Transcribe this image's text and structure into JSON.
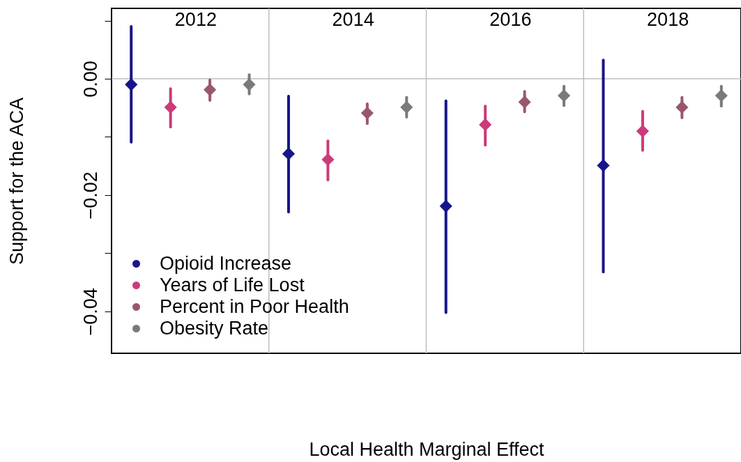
{
  "chart_data": {
    "type": "scatter",
    "xlabel": "Local Health Marginal Effect",
    "ylabel": "Support for the ACA",
    "categories": [
      null,
      null,
      null,
      null,
      null,
      null,
      null,
      null,
      null,
      null,
      null,
      null,
      null,
      null,
      null,
      null
    ],
    "annotations": [
      "2012",
      "2014",
      "2016",
      "2018"
    ],
    "ylim": [
      -0.0472,
      0.0121
    ],
    "yticks": [
      {
        "value": -0.04,
        "label": "−0.04"
      },
      {
        "value": -0.03,
        "label": null
      },
      {
        "value": -0.02,
        "label": "−0.02"
      },
      {
        "value": -0.01,
        "label": null
      },
      {
        "value": 0,
        "label": "0.00"
      },
      {
        "value": 0.01,
        "label": null
      }
    ],
    "marker": "diamond",
    "legend": "bottom left",
    "ref_lines": [
      {
        "axis": "y",
        "value": 0,
        "color": "#bebebe"
      }
    ],
    "series": [
      {
        "name": "Opioid Increase",
        "color": "#16168a",
        "values": [
          -0.001,
          null,
          null,
          null,
          -0.0129,
          null,
          null,
          null,
          -0.0219,
          null,
          null,
          null,
          -0.0149,
          null,
          null,
          null
        ],
        "errors": [
          [
            -0.0109,
            0.009
          ],
          null,
          null,
          null,
          [
            -0.0229,
            -0.003
          ],
          null,
          null,
          null,
          [
            -0.0402,
            -0.0038
          ],
          null,
          null,
          null,
          [
            -0.0332,
            0.0032
          ],
          null,
          null,
          null
        ]
      },
      {
        "name": "Years of Life Lost",
        "color": "#cc3a7a",
        "values": [
          null,
          -0.0049,
          null,
          null,
          null,
          -0.0139,
          null,
          null,
          null,
          -0.0079,
          null,
          null,
          null,
          -0.009,
          null,
          null
        ],
        "errors": [
          null,
          [
            -0.0083,
            -0.0017
          ],
          null,
          null,
          null,
          [
            -0.0174,
            -0.0107
          ],
          null,
          null,
          null,
          [
            -0.0114,
            -0.0047
          ],
          null,
          null,
          null,
          [
            -0.0123,
            -0.0056
          ],
          null,
          null
        ]
      },
      {
        "name": "Percent in Poor Health",
        "color": "#9a5670",
        "values": [
          null,
          null,
          -0.0019,
          null,
          null,
          null,
          -0.0059,
          null,
          null,
          null,
          -0.004,
          null,
          null,
          null,
          -0.0049,
          null
        ],
        "errors": [
          null,
          null,
          [
            -0.0037,
            -0.0002
          ],
          null,
          null,
          null,
          [
            -0.0077,
            -0.0043
          ],
          null,
          null,
          null,
          [
            -0.0057,
            -0.0022
          ],
          null,
          null,
          null,
          [
            -0.0067,
            -0.0032
          ],
          null
        ]
      },
      {
        "name": "Obesity Rate",
        "color": "#7a7a7a",
        "values": [
          null,
          null,
          null,
          -0.001,
          null,
          null,
          null,
          -0.0049,
          null,
          null,
          null,
          -0.0029,
          null,
          null,
          null,
          -0.0029
        ],
        "errors": [
          null,
          null,
          null,
          [
            -0.0026,
            0.0007
          ],
          null,
          null,
          null,
          [
            -0.0066,
            -0.0032
          ],
          null,
          null,
          null,
          [
            -0.0046,
            -0.0013
          ],
          null,
          null,
          null,
          [
            -0.0047,
            -0.0013
          ]
        ]
      }
    ]
  }
}
